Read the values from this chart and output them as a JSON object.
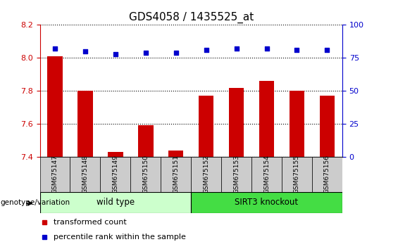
{
  "title": "GDS4058 / 1435525_at",
  "samples": [
    "GSM675147",
    "GSM675148",
    "GSM675149",
    "GSM675150",
    "GSM675151",
    "GSM675152",
    "GSM675153",
    "GSM675154",
    "GSM675155",
    "GSM675156"
  ],
  "red_values": [
    8.01,
    7.8,
    7.43,
    7.59,
    7.44,
    7.77,
    7.82,
    7.86,
    7.8,
    7.77
  ],
  "blue_values": [
    82,
    80,
    78,
    79,
    79,
    81,
    82,
    82,
    81,
    81
  ],
  "ylim_left": [
    7.4,
    8.2
  ],
  "ylim_right": [
    0,
    100
  ],
  "yticks_left": [
    7.4,
    7.6,
    7.8,
    8.0,
    8.2
  ],
  "yticks_right": [
    0,
    25,
    50,
    75,
    100
  ],
  "bar_color": "#CC0000",
  "dot_color": "#0000CC",
  "left_tick_color": "#CC0000",
  "right_tick_color": "#0000CC",
  "title_fontsize": 11,
  "tick_fontsize": 8,
  "bar_width": 0.5,
  "label_wild_type": "wild type",
  "label_sirt3_ko": "SIRT3 knockout",
  "wt_color": "#ccffcc",
  "ko_color": "#44dd44",
  "xlab_bg": "#cccccc",
  "legend_red": "transformed count",
  "legend_blue": "percentile rank within the sample",
  "genotype_label": "genotype/variation"
}
